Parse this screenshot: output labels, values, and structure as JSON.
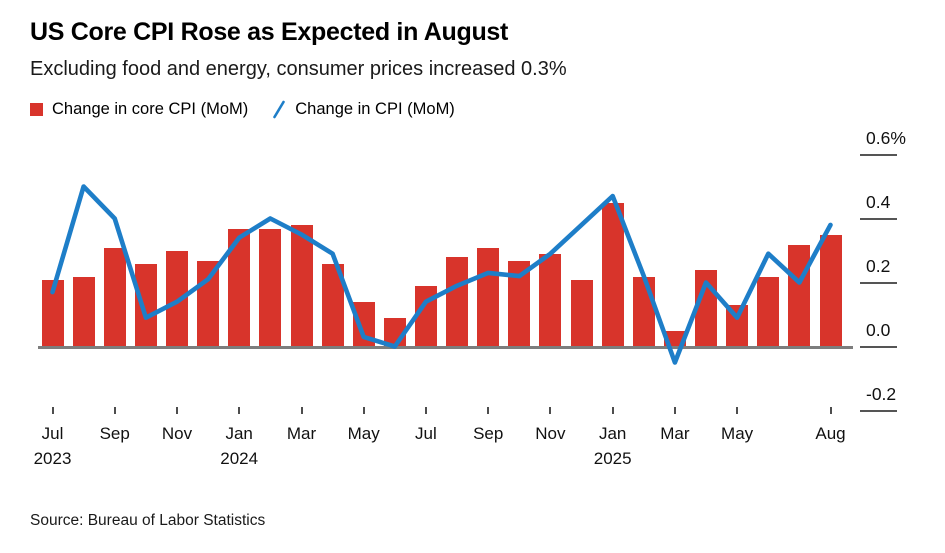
{
  "header": {
    "title": "US Core CPI Rose as Expected in August",
    "subtitle": "Excluding food and energy, consumer prices increased 0.3%"
  },
  "legend": {
    "items": [
      {
        "label": "Change in core CPI (MoM)",
        "swatch": "red-square",
        "color": "#d8342b"
      },
      {
        "label": "Change in CPI (MoM)",
        "swatch": "blue-slash",
        "color": "#1e7ec8"
      }
    ]
  },
  "source": "Source: Bureau of Labor Statistics",
  "chart_data": {
    "type": "bar+line",
    "categories": [
      "Jul 2023",
      "Aug 2023",
      "Sep 2023",
      "Oct 2023",
      "Nov 2023",
      "Dec 2023",
      "Jan 2024",
      "Feb 2024",
      "Mar 2024",
      "Apr 2024",
      "May 2024",
      "Jun 2024",
      "Jul 2024",
      "Aug 2024",
      "Sep 2024",
      "Oct 2024",
      "Nov 2024",
      "Dec 2024",
      "Jan 2025",
      "Feb 2025",
      "Mar 2025",
      "Apr 2025",
      "May 2025",
      "Jun 2025",
      "Jul 2025",
      "Aug 2025"
    ],
    "series": [
      {
        "name": "Change in core CPI (MoM)",
        "type": "bar",
        "color": "#d8342b",
        "values": [
          0.21,
          0.22,
          0.31,
          0.26,
          0.3,
          0.27,
          0.37,
          0.37,
          0.38,
          0.26,
          0.14,
          0.09,
          0.19,
          0.28,
          0.31,
          0.27,
          0.29,
          0.21,
          0.45,
          0.22,
          0.05,
          0.24,
          0.13,
          0.22,
          0.32,
          0.35
        ]
      },
      {
        "name": "Change in CPI (MoM)",
        "type": "line",
        "color": "#1e7ec8",
        "values": [
          0.17,
          0.5,
          0.4,
          0.09,
          0.14,
          0.21,
          0.34,
          0.4,
          0.35,
          0.29,
          0.03,
          0.0,
          0.14,
          0.19,
          0.23,
          0.22,
          0.29,
          0.38,
          0.47,
          0.22,
          -0.05,
          0.2,
          0.09,
          0.29,
          0.2,
          0.38
        ]
      }
    ],
    "unit": "%",
    "ylim": [
      -0.28,
      0.66
    ],
    "grid": false,
    "legend_position": "top-left",
    "axis_side": "right",
    "yticks": [
      {
        "value": 0.6,
        "label": "0.6%"
      },
      {
        "value": 0.4,
        "label": "0.4"
      },
      {
        "value": 0.2,
        "label": "0.2"
      },
      {
        "value": 0.0,
        "label": "0.0"
      },
      {
        "value": -0.2,
        "label": "-0.2"
      }
    ],
    "xticks": [
      {
        "index": 0,
        "label": "Jul",
        "year": "2023"
      },
      {
        "index": 2,
        "label": "Sep"
      },
      {
        "index": 4,
        "label": "Nov"
      },
      {
        "index": 6,
        "label": "Jan",
        "year": "2024"
      },
      {
        "index": 8,
        "label": "Mar"
      },
      {
        "index": 10,
        "label": "May"
      },
      {
        "index": 12,
        "label": "Jul"
      },
      {
        "index": 14,
        "label": "Sep"
      },
      {
        "index": 16,
        "label": "Nov"
      },
      {
        "index": 18,
        "label": "Jan",
        "year": "2025"
      },
      {
        "index": 20,
        "label": "Mar"
      },
      {
        "index": 22,
        "label": "May"
      },
      {
        "index": 25,
        "label": "Aug"
      }
    ]
  }
}
